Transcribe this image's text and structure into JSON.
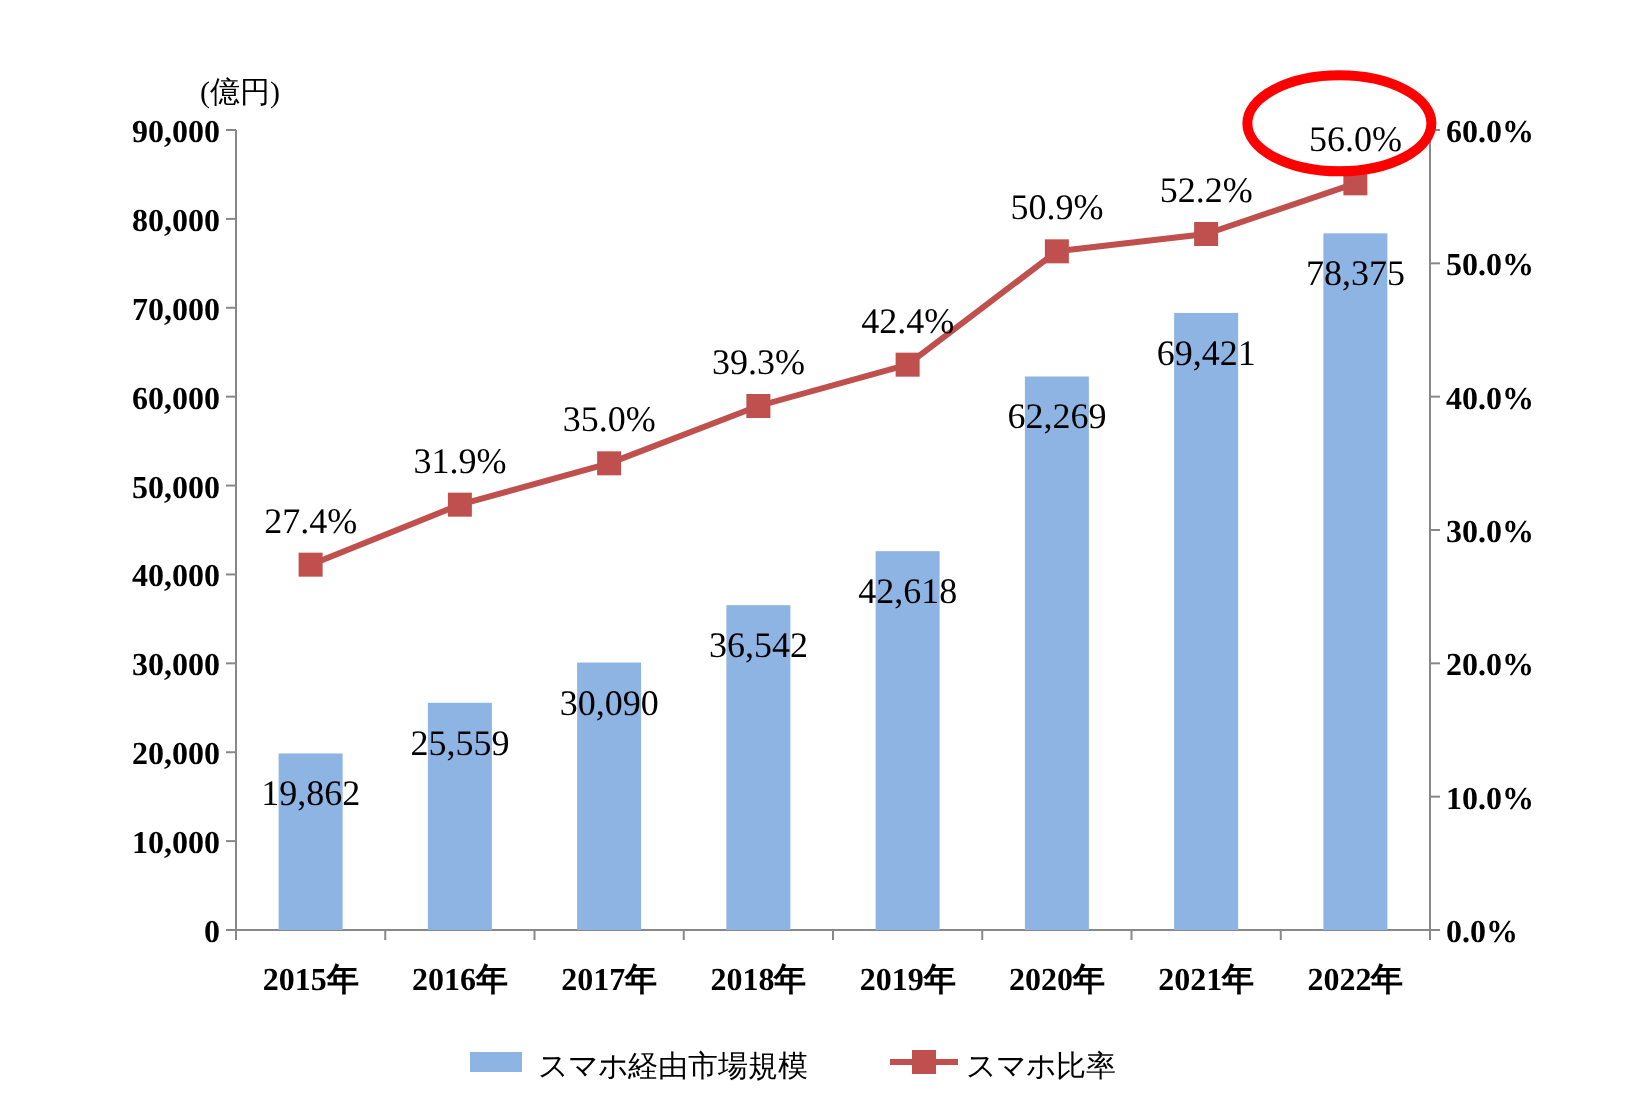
{
  "chart_data": {
    "type": "bar",
    "ylabel": "(億円)",
    "categories": [
      "2015年",
      "2016年",
      "2017年",
      "2018年",
      "2019年",
      "2020年",
      "2021年",
      "2022年"
    ],
    "series": [
      {
        "name": "スマホ経由市場規模",
        "color": "#8eb4e3",
        "values": [
          19862,
          25559,
          30090,
          36542,
          42618,
          62269,
          69421,
          78375
        ],
        "value_labels": [
          "19,862",
          "25,559",
          "30,090",
          "36,542",
          "42,618",
          "62,269",
          "69,421",
          "78,375"
        ]
      },
      {
        "name": "スマホ比率",
        "type": "line",
        "axis": "y2",
        "color": "#c0504d",
        "marker": "square",
        "values": [
          27.4,
          31.9,
          35.0,
          39.3,
          42.4,
          50.9,
          52.2,
          56.0
        ],
        "value_labels": [
          "27.4%",
          "31.9%",
          "35.0%",
          "39.3%",
          "42.4%",
          "50.9%",
          "52.2%",
          "56.0%"
        ]
      }
    ],
    "ylim": [
      0,
      90000
    ],
    "yticks": [
      {
        "value": 0,
        "label": "0"
      },
      {
        "value": 10000,
        "label": "10,000"
      },
      {
        "value": 20000,
        "label": "20,000"
      },
      {
        "value": 30000,
        "label": "30,000"
      },
      {
        "value": 40000,
        "label": "40,000"
      },
      {
        "value": 50000,
        "label": "50,000"
      },
      {
        "value": 60000,
        "label": "60,000"
      },
      {
        "value": 70000,
        "label": "70,000"
      },
      {
        "value": 80000,
        "label": "80,000"
      },
      {
        "value": 90000,
        "label": "90,000"
      }
    ],
    "y2lim": [
      0,
      60
    ],
    "y2ticks": [
      {
        "value": 0,
        "label": "0.0%"
      },
      {
        "value": 10,
        "label": "10.0%"
      },
      {
        "value": 20,
        "label": "20.0%"
      },
      {
        "value": 30,
        "label": "30.0%"
      },
      {
        "value": 40,
        "label": "40.0%"
      },
      {
        "value": 50,
        "label": "50.0%"
      },
      {
        "value": 60,
        "label": "60.0%"
      }
    ],
    "legend": "bottom"
  }
}
